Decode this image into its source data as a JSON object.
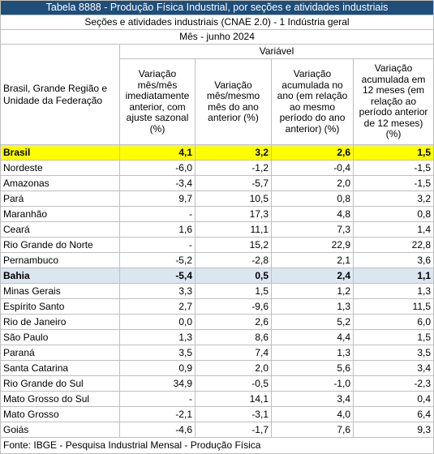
{
  "header": {
    "title": "Tabela 8888 - Produção Física Industrial, por seções e atividades industriais",
    "subtitle": "Seções e atividades industriais (CNAE 2.0) - 1 Indústria geral",
    "period": "Mês - junho 2024"
  },
  "table": {
    "row_header": "Brasil, Grande Região e Unidade da Federação",
    "group_header": "Variável",
    "columns": [
      "Variação mês/mês imediatamente anterior, com ajuste sazonal (%)",
      "Variação mês/mesmo mês do ano anterior (%)",
      "Variação acumulada no ano (em relação ao mesmo período do ano anterior) (%)",
      "Variação acumulada em 12 meses (em relação ao período anterior de 12 meses) (%)"
    ],
    "rows": [
      [
        "Brasil",
        "4,1",
        "3,2",
        "2,6",
        "1,5"
      ],
      [
        "Nordeste",
        "-6,0",
        "-1,2",
        "-0,4",
        "-1,5"
      ],
      [
        "Amazonas",
        "-3,4",
        "-5,7",
        "2,0",
        "-1,5"
      ],
      [
        "Pará",
        "9,7",
        "10,5",
        "0,8",
        "3,2"
      ],
      [
        "Maranhão",
        "-",
        "17,3",
        "4,8",
        "0,8"
      ],
      [
        "Ceará",
        "1,6",
        "11,1",
        "7,3",
        "1,4"
      ],
      [
        "Rio Grande do Norte",
        "-",
        "15,2",
        "22,9",
        "22,8"
      ],
      [
        "Pernambuco",
        "-5,2",
        "-2,8",
        "2,1",
        "3,6"
      ],
      [
        "Bahia",
        "-5,4",
        "0,5",
        "2,4",
        "1,1"
      ],
      [
        "Minas Gerais",
        "3,3",
        "1,5",
        "1,2",
        "1,3"
      ],
      [
        "Espírito Santo",
        "2,7",
        "-9,6",
        "1,3",
        "11,5"
      ],
      [
        "Rio de Janeiro",
        "0,0",
        "2,6",
        "5,2",
        "6,0"
      ],
      [
        "São Paulo",
        "1,3",
        "8,6",
        "4,4",
        "1,5"
      ],
      [
        "Paraná",
        "3,5",
        "7,4",
        "1,3",
        "3,5"
      ],
      [
        "Santa Catarina",
        "0,9",
        "2,0",
        "5,6",
        "3,4"
      ],
      [
        "Rio Grande do Sul",
        "34,9",
        "-0,5",
        "-1,0",
        "-2,3"
      ],
      [
        "Mato Grosso do Sul",
        "-",
        "14,1",
        "3,4",
        "0,4"
      ],
      [
        "Mato Grosso",
        "-2,1",
        "-3,1",
        "4,0",
        "6,4"
      ],
      [
        "Goiás",
        "-4,6",
        "-1,7",
        "7,6",
        "9,3"
      ]
    ]
  },
  "footer": "Fonte: IBGE - Pesquisa Industrial Mensal - Produção Física"
}
